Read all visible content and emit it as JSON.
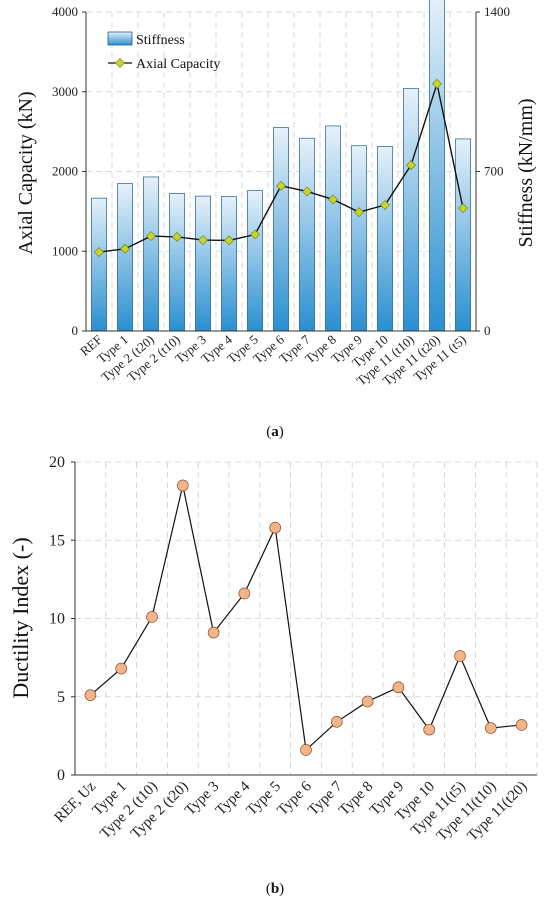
{
  "figure": {
    "caption_a_open": "(",
    "caption_a_letter": "a",
    "caption_a_close": ")",
    "caption_b_open": "(",
    "caption_b_letter": "b",
    "caption_b_close": ")"
  },
  "colors": {
    "bar_top": "#e6f1fa",
    "bar_bottom": "#2a8fd0",
    "bar_edge": "#1f5f8b",
    "line": "#111111",
    "diamond": "#c8d42a",
    "circle": "#f2b488",
    "circle_edge": "#7a3f1e",
    "grid": "#cfcfcf"
  },
  "chart_data": [
    {
      "type": "bar",
      "categories": [
        "REF",
        "Type 1",
        "Type 2 (t20)",
        "Type 2 (t10)",
        "Type 3",
        "Type 4",
        "Type 5",
        "Type 6",
        "Type 7",
        "Type 8",
        "Type 9",
        "Type 10",
        "Type 11 (t10)",
        "Type 11 (t20)",
        "Type 11 (t5)"
      ],
      "series": [
        {
          "name": "Stiffness",
          "axis": "right",
          "kind": "bar",
          "values": [
            583,
            647,
            676,
            604,
            592,
            590,
            616,
            893,
            846,
            900,
            813,
            810,
            1064,
            1475,
            843
          ]
        },
        {
          "name": "Axial Capacity",
          "axis": "left",
          "kind": "line",
          "values": [
            990,
            1030,
            1190,
            1180,
            1140,
            1135,
            1210,
            1820,
            1750,
            1650,
            1490,
            1580,
            2080,
            3100,
            1540
          ]
        }
      ],
      "ylabel": "Axial Capacity (kN)",
      "ylabel_right": "Stiffness (kN/mm)",
      "ylim": [
        0,
        4000
      ],
      "yticks": [
        "0",
        "1000",
        "2000",
        "3000",
        "4000"
      ],
      "ylim_right": [
        0,
        1400
      ],
      "yticks_right": [
        "0",
        "700",
        "1400"
      ],
      "grid": true,
      "legend": "top-left"
    },
    {
      "type": "line",
      "categories": [
        "REF, Uz",
        "Type 1",
        "Type 2 (t10)",
        "Type 2 (t20)",
        "Type 3",
        "Type 4",
        "Type 5",
        "Type 6",
        "Type 7",
        "Type 8",
        "Type 9",
        "Type 10",
        "Type 11(t5)",
        "Type 11(t10)",
        "Type 11(t20)"
      ],
      "values": [
        5.1,
        6.8,
        10.1,
        18.5,
        9.1,
        11.6,
        15.8,
        1.6,
        3.4,
        4.7,
        5.6,
        2.9,
        7.6,
        3.0,
        3.2
      ],
      "ylabel": "Ductility Index (-)",
      "ylim": [
        0,
        20
      ],
      "yticks": [
        "0",
        "5",
        "10",
        "15",
        "20"
      ],
      "grid": true
    }
  ]
}
